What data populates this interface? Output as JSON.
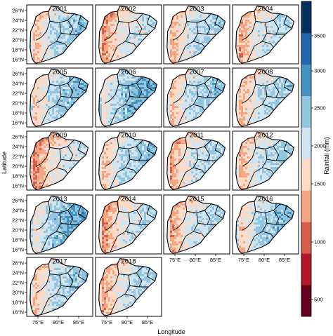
{
  "figure": {
    "panels": [
      {
        "year": "2001",
        "wet": 0.55
      },
      {
        "year": "2002",
        "wet": 0.4
      },
      {
        "year": "2003",
        "wet": 0.5
      },
      {
        "year": "2004",
        "wet": 0.45
      },
      {
        "year": "2005",
        "wet": 0.6
      },
      {
        "year": "2006",
        "wet": 0.7
      },
      {
        "year": "2007",
        "wet": 0.55
      },
      {
        "year": "2008",
        "wet": 0.5
      },
      {
        "year": "2009",
        "wet": 0.35
      },
      {
        "year": "2010",
        "wet": 0.55
      },
      {
        "year": "2011",
        "wet": 0.45
      },
      {
        "year": "2012",
        "wet": 0.5
      },
      {
        "year": "2013",
        "wet": 0.7
      },
      {
        "year": "2014",
        "wet": 0.4
      },
      {
        "year": "2015",
        "wet": 0.45
      },
      {
        "year": "2016",
        "wet": 0.6
      },
      {
        "year": "2017",
        "wet": 0.55
      },
      {
        "year": "2018",
        "wet": 0.45
      }
    ],
    "lat_ticks": [
      "26°N",
      "24°N",
      "22°N",
      "20°N",
      "18°N",
      "16°N"
    ],
    "lon_ticks": [
      "75°E",
      "80°E",
      "85°E"
    ],
    "x_axis_title": "Longitude",
    "y_axis_title": "Latitude"
  },
  "colorbar": {
    "title": "Rainfall (mm)",
    "labels": [
      "500",
      "1000",
      "1500",
      "2000",
      "2500",
      "3000",
      "3500"
    ],
    "colors": [
      "#67001f",
      "#b2182b",
      "#d6604d",
      "#f4a582",
      "#fddbc7",
      "#d1e5f0",
      "#92c5de",
      "#4393c3",
      "#2166ac",
      "#053061"
    ]
  }
}
